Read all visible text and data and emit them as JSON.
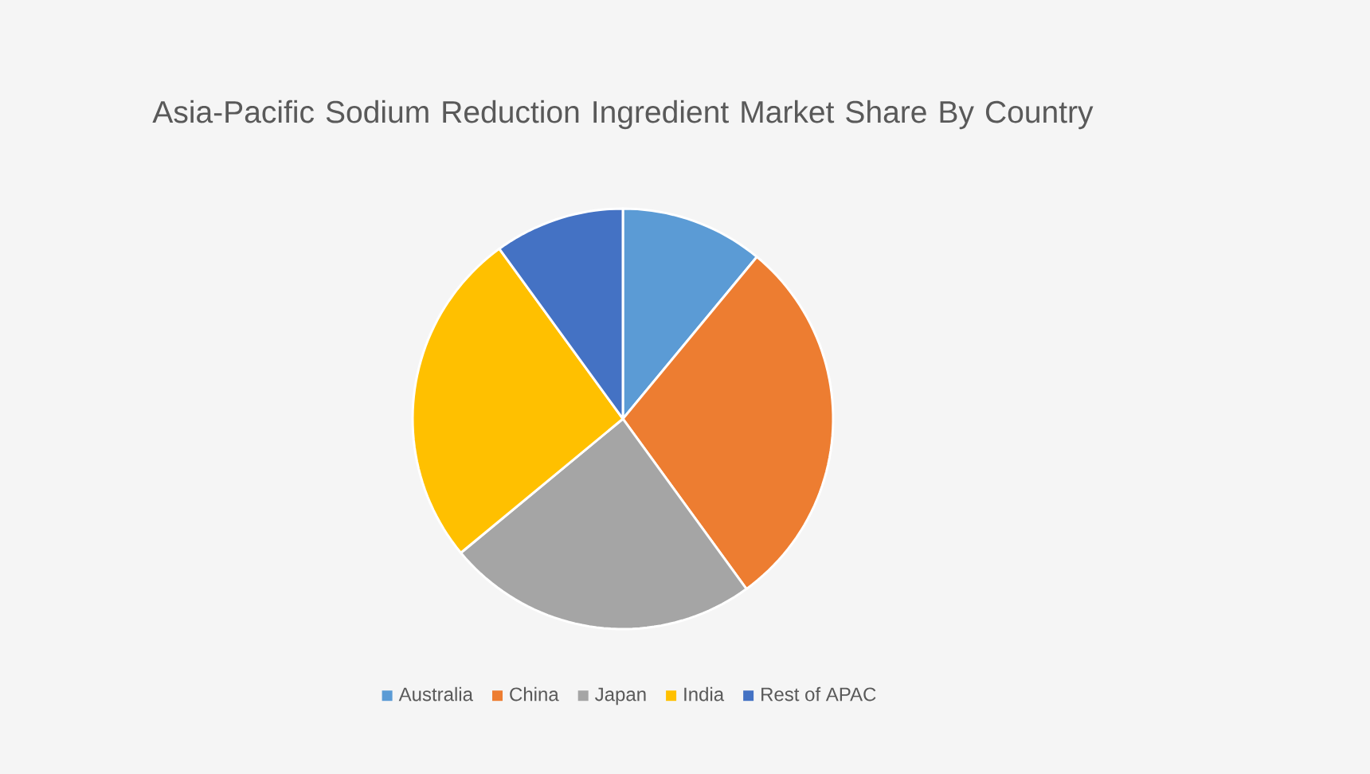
{
  "chart_data": {
    "type": "pie",
    "title": "Asia-Pacific Sodium Reduction Ingredient Market Share By Country",
    "categories": [
      "Australia",
      "China",
      "Japan",
      "India",
      "Rest of APAC"
    ],
    "values": [
      11,
      29,
      24,
      26,
      10
    ],
    "colors": [
      "#5b9bd5",
      "#ed7d31",
      "#a5a5a5",
      "#ffc000",
      "#4472c4"
    ],
    "legend": "bottom"
  }
}
